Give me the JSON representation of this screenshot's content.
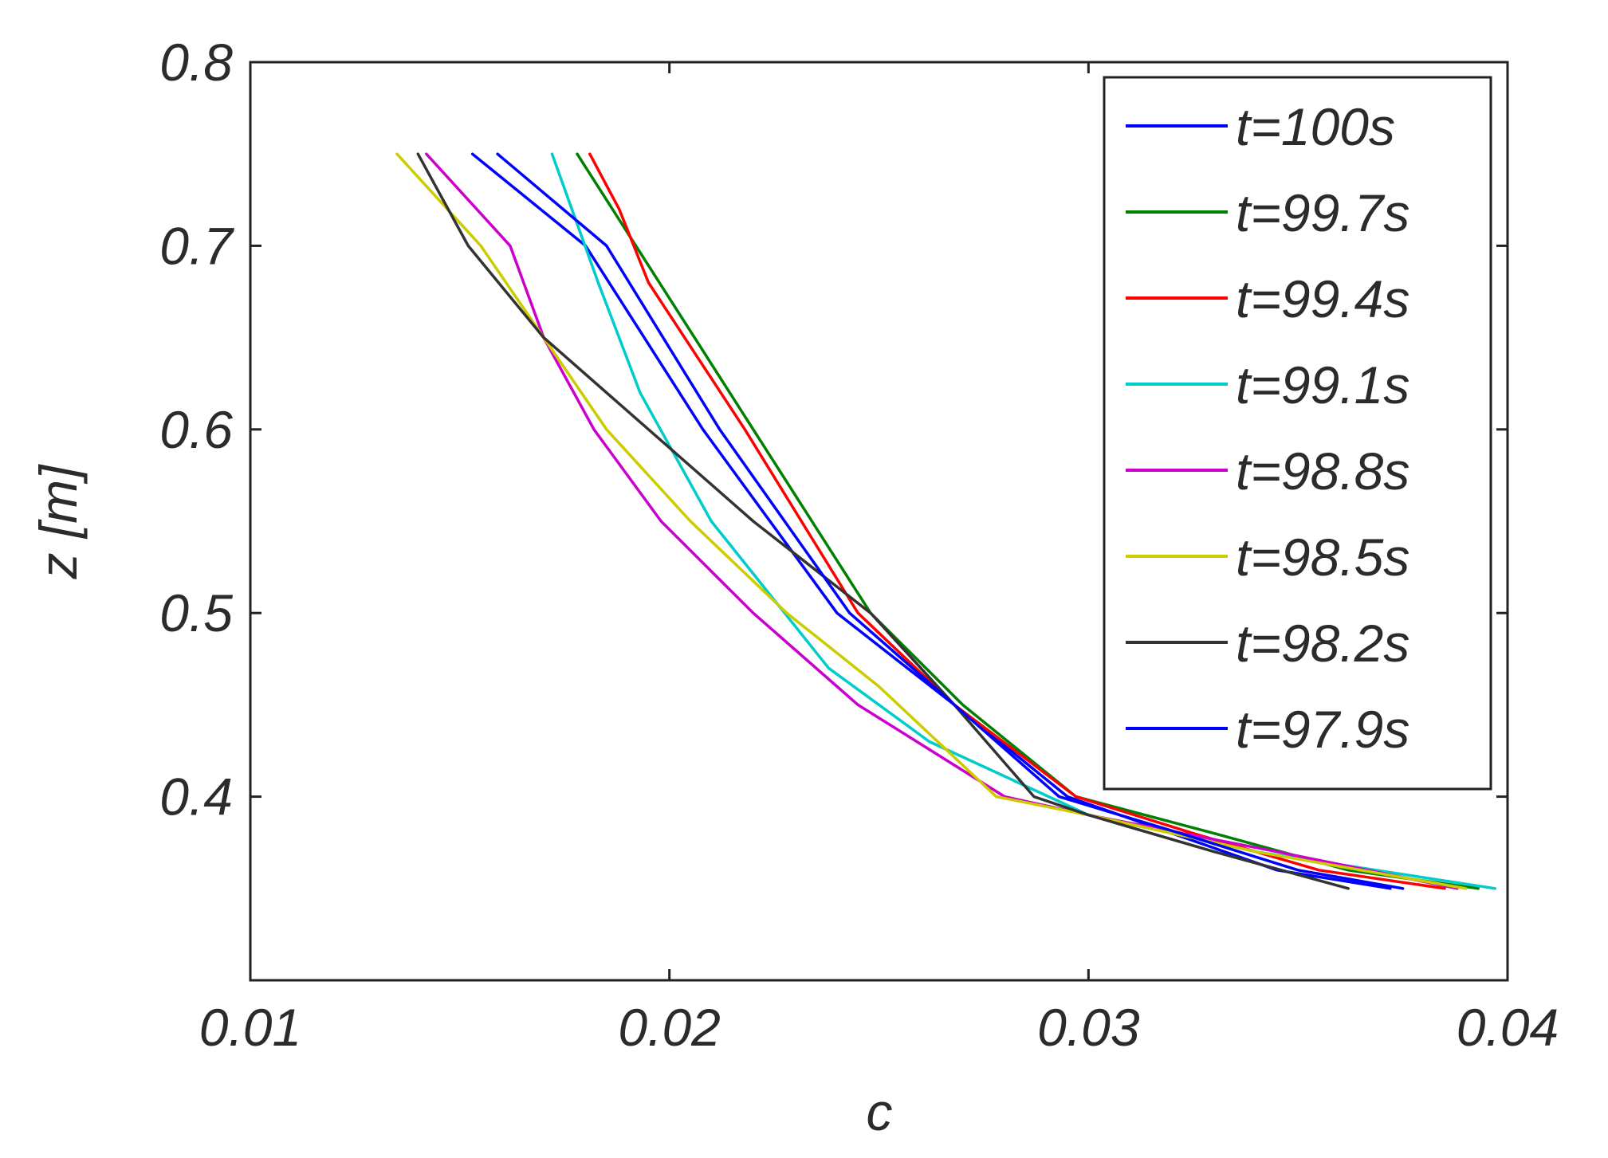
{
  "chart_data": {
    "type": "line",
    "title": "",
    "xlabel": "c",
    "ylabel": "z [m]",
    "xlim": [
      0.01,
      0.04
    ],
    "ylim": [
      0.3,
      0.8
    ],
    "xticks": [
      0.01,
      0.02,
      0.03,
      0.04
    ],
    "xtick_labels": [
      "0.01",
      "0.02",
      "0.03",
      "0.04"
    ],
    "yticks": [
      0.4,
      0.5,
      0.6,
      0.7,
      0.8
    ],
    "ytick_labels": [
      "0.4",
      "0.5",
      "0.6",
      "0.7",
      "0.8"
    ],
    "grid": false,
    "legend_position": "top-right",
    "series": [
      {
        "name": "t=100s",
        "color": "#0000ff",
        "points": [
          [
            0.0153,
            0.75
          ],
          [
            0.018,
            0.7
          ],
          [
            0.0208,
            0.6
          ],
          [
            0.024,
            0.5
          ],
          [
            0.0268,
            0.45
          ],
          [
            0.0295,
            0.4
          ],
          [
            0.032,
            0.38
          ],
          [
            0.0345,
            0.36
          ],
          [
            0.0372,
            0.35
          ]
        ]
      },
      {
        "name": "t=99.7s",
        "color": "#008000",
        "points": [
          [
            0.0178,
            0.75
          ],
          [
            0.0192,
            0.7
          ],
          [
            0.022,
            0.6
          ],
          [
            0.0248,
            0.5
          ],
          [
            0.027,
            0.45
          ],
          [
            0.0297,
            0.4
          ],
          [
            0.033,
            0.38
          ],
          [
            0.0362,
            0.36
          ],
          [
            0.0393,
            0.35
          ]
        ]
      },
      {
        "name": "t=99.4s",
        "color": "#ff0000",
        "points": [
          [
            0.0181,
            0.75
          ],
          [
            0.0188,
            0.72
          ],
          [
            0.0195,
            0.68
          ],
          [
            0.0218,
            0.6
          ],
          [
            0.0245,
            0.5
          ],
          [
            0.0268,
            0.45
          ],
          [
            0.0297,
            0.4
          ],
          [
            0.0325,
            0.38
          ],
          [
            0.0355,
            0.36
          ],
          [
            0.0385,
            0.35
          ]
        ]
      },
      {
        "name": "t=99.1s",
        "color": "#00cccc",
        "points": [
          [
            0.0172,
            0.75
          ],
          [
            0.0183,
            0.68
          ],
          [
            0.0193,
            0.62
          ],
          [
            0.021,
            0.55
          ],
          [
            0.0238,
            0.47
          ],
          [
            0.0262,
            0.43
          ],
          [
            0.03,
            0.39
          ],
          [
            0.034,
            0.37
          ],
          [
            0.0397,
            0.35
          ]
        ]
      },
      {
        "name": "t=98.8s",
        "color": "#cc00cc",
        "points": [
          [
            0.0142,
            0.75
          ],
          [
            0.0162,
            0.7
          ],
          [
            0.017,
            0.65
          ],
          [
            0.0182,
            0.6
          ],
          [
            0.0198,
            0.55
          ],
          [
            0.022,
            0.5
          ],
          [
            0.0245,
            0.45
          ],
          [
            0.028,
            0.4
          ],
          [
            0.03,
            0.39
          ],
          [
            0.0345,
            0.37
          ],
          [
            0.0388,
            0.35
          ]
        ]
      },
      {
        "name": "t=98.5s",
        "color": "#cccc00",
        "points": [
          [
            0.0135,
            0.75
          ],
          [
            0.0155,
            0.7
          ],
          [
            0.017,
            0.65
          ],
          [
            0.0185,
            0.6
          ],
          [
            0.0205,
            0.55
          ],
          [
            0.0228,
            0.5
          ],
          [
            0.025,
            0.46
          ],
          [
            0.0278,
            0.4
          ],
          [
            0.03,
            0.39
          ],
          [
            0.034,
            0.37
          ],
          [
            0.039,
            0.35
          ]
        ]
      },
      {
        "name": "t=98.2s",
        "color": "#333333",
        "points": [
          [
            0.014,
            0.75
          ],
          [
            0.0152,
            0.7
          ],
          [
            0.017,
            0.65
          ],
          [
            0.0195,
            0.6
          ],
          [
            0.022,
            0.55
          ],
          [
            0.0248,
            0.5
          ],
          [
            0.0268,
            0.45
          ],
          [
            0.0287,
            0.4
          ],
          [
            0.03,
            0.39
          ],
          [
            0.033,
            0.37
          ],
          [
            0.0362,
            0.35
          ]
        ]
      },
      {
        "name": "t=97.9s",
        "color": "#0000ff",
        "points": [
          [
            0.0159,
            0.75
          ],
          [
            0.0185,
            0.7
          ],
          [
            0.0212,
            0.6
          ],
          [
            0.0243,
            0.5
          ],
          [
            0.0268,
            0.45
          ],
          [
            0.0293,
            0.4
          ],
          [
            0.0322,
            0.38
          ],
          [
            0.035,
            0.36
          ],
          [
            0.0375,
            0.35
          ]
        ]
      }
    ]
  }
}
